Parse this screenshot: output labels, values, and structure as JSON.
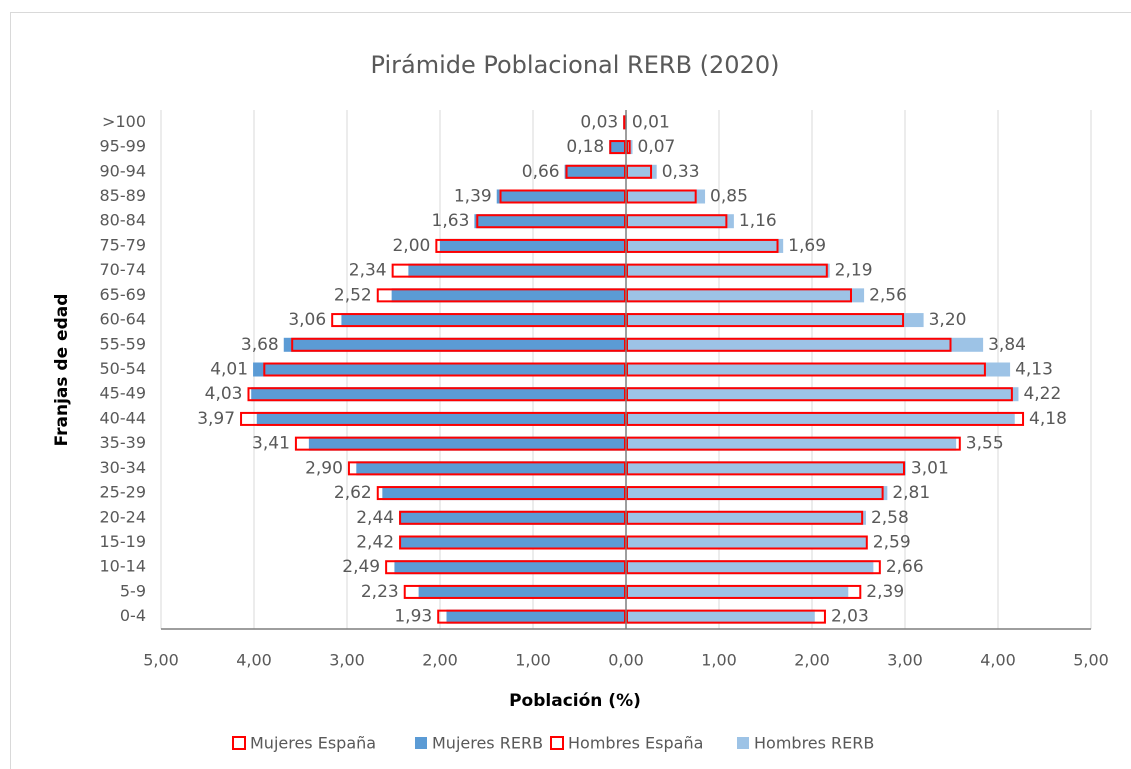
{
  "chart_data": {
    "type": "pyramid",
    "title": "Pirámide Poblacional RERB (2020)",
    "x_label": "Población (%)",
    "y_label": "Franjas de edad",
    "categories": [
      ">100",
      "95-99",
      "90-94",
      "85-89",
      "80-84",
      "75-79",
      "70-74",
      "65-69",
      "60-64",
      "55-59",
      "50-54",
      "45-49",
      "40-44",
      "35-39",
      "30-34",
      "25-29",
      "20-24",
      "15-19",
      "10-14",
      "5-9",
      "0-4"
    ],
    "xlim": [
      -5,
      5
    ],
    "xticks": [
      {
        "value": -5,
        "label": "5,00"
      },
      {
        "value": -4,
        "label": "4,00"
      },
      {
        "value": -3,
        "label": "3,00"
      },
      {
        "value": -2,
        "label": "2,00"
      },
      {
        "value": -1,
        "label": "1,00"
      },
      {
        "value": 0,
        "label": "0,00"
      },
      {
        "value": 1,
        "label": "1,00"
      },
      {
        "value": 2,
        "label": "2,00"
      },
      {
        "value": 3,
        "label": "3,00"
      },
      {
        "value": 4,
        "label": "4,00"
      },
      {
        "value": 5,
        "label": "5,00"
      }
    ],
    "grid": true,
    "legend": "bottom",
    "series": [
      {
        "name": "Mujeres RERB",
        "color": "#5b9bd5",
        "fill": true,
        "values": [
          -0.03,
          -0.18,
          -0.66,
          -1.39,
          -1.63,
          -2.0,
          -2.34,
          -2.52,
          -3.06,
          -3.68,
          -4.01,
          -4.03,
          -3.97,
          -3.41,
          -2.9,
          -2.62,
          -2.44,
          -2.42,
          -2.49,
          -2.23,
          -1.93
        ],
        "value_labels": [
          "0,03",
          "0,18",
          "0,66",
          "1,39",
          "1,63",
          "2,00",
          "2,34",
          "2,52",
          "3,06",
          "3,68",
          "4,01",
          "4,03",
          "3,97",
          "3,41",
          "2,90",
          "2,62",
          "2,44",
          "2,42",
          "2,49",
          "2,23",
          "1,93"
        ]
      },
      {
        "name": "Mujeres España",
        "color": "#ff0000",
        "fill": false,
        "values": [
          -0.03,
          -0.18,
          -0.65,
          -1.36,
          -1.61,
          -2.05,
          -2.52,
          -2.68,
          -3.17,
          -3.6,
          -3.9,
          -4.07,
          -4.15,
          -3.56,
          -2.99,
          -2.68,
          -2.44,
          -2.44,
          -2.59,
          -2.39,
          -2.03
        ]
      },
      {
        "name": "Hombres RERB",
        "color": "#9dc3e6",
        "fill": true,
        "values": [
          0.01,
          0.07,
          0.33,
          0.85,
          1.16,
          1.69,
          2.19,
          2.56,
          3.2,
          3.84,
          4.13,
          4.22,
          4.18,
          3.55,
          3.01,
          2.81,
          2.58,
          2.59,
          2.66,
          2.39,
          2.03
        ],
        "value_labels": [
          "0,01",
          "0,07",
          "0,33",
          "0,85",
          "1,16",
          "1,69",
          "2,19",
          "2,56",
          "3,20",
          "3,84",
          "4,13",
          "4,22",
          "4,18",
          "3,55",
          "3,01",
          "2,81",
          "2,58",
          "2,59",
          "2,66",
          "2,39",
          "2,03"
        ]
      },
      {
        "name": "Hombres España",
        "color": "#ff0000",
        "fill": false,
        "values": [
          0.01,
          0.05,
          0.28,
          0.76,
          1.09,
          1.64,
          2.17,
          2.43,
          2.99,
          3.5,
          3.87,
          4.16,
          4.28,
          3.6,
          3.0,
          2.77,
          2.55,
          2.6,
          2.74,
          2.53,
          2.15
        ]
      }
    ],
    "legend_order": [
      "Mujeres España",
      "Mujeres RERB",
      "Hombres España",
      "Hombres RERB"
    ]
  }
}
